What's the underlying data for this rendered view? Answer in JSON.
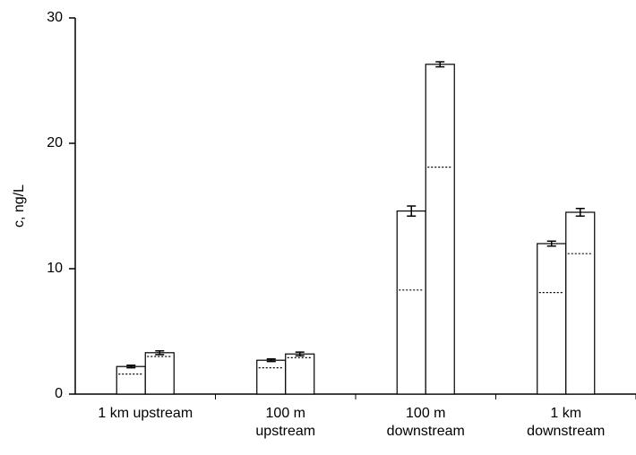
{
  "chart_data": {
    "type": "bar",
    "ylabel": "c, ng/L",
    "categories": [
      [
        "1 km upstream"
      ],
      [
        "100 m",
        "upstream"
      ],
      [
        "100 m",
        "downstream"
      ],
      [
        "1 km",
        "downstream"
      ]
    ],
    "series": [
      {
        "color": "#ffffff",
        "values": [
          2.2,
          2.7,
          14.6,
          12.0
        ],
        "errors": [
          0.1,
          0.1,
          0.4,
          0.2
        ],
        "dotted_values": [
          1.6,
          2.1,
          8.3,
          8.1
        ]
      },
      {
        "color": "#ffffff",
        "values": [
          3.3,
          3.2,
          26.3,
          14.5
        ],
        "errors": [
          0.15,
          0.15,
          0.2,
          0.3
        ],
        "dotted_values": [
          3.0,
          2.9,
          18.1,
          11.2
        ]
      }
    ],
    "ylim": [
      0,
      30
    ],
    "yticks": [
      0,
      10,
      20,
      30
    ]
  }
}
